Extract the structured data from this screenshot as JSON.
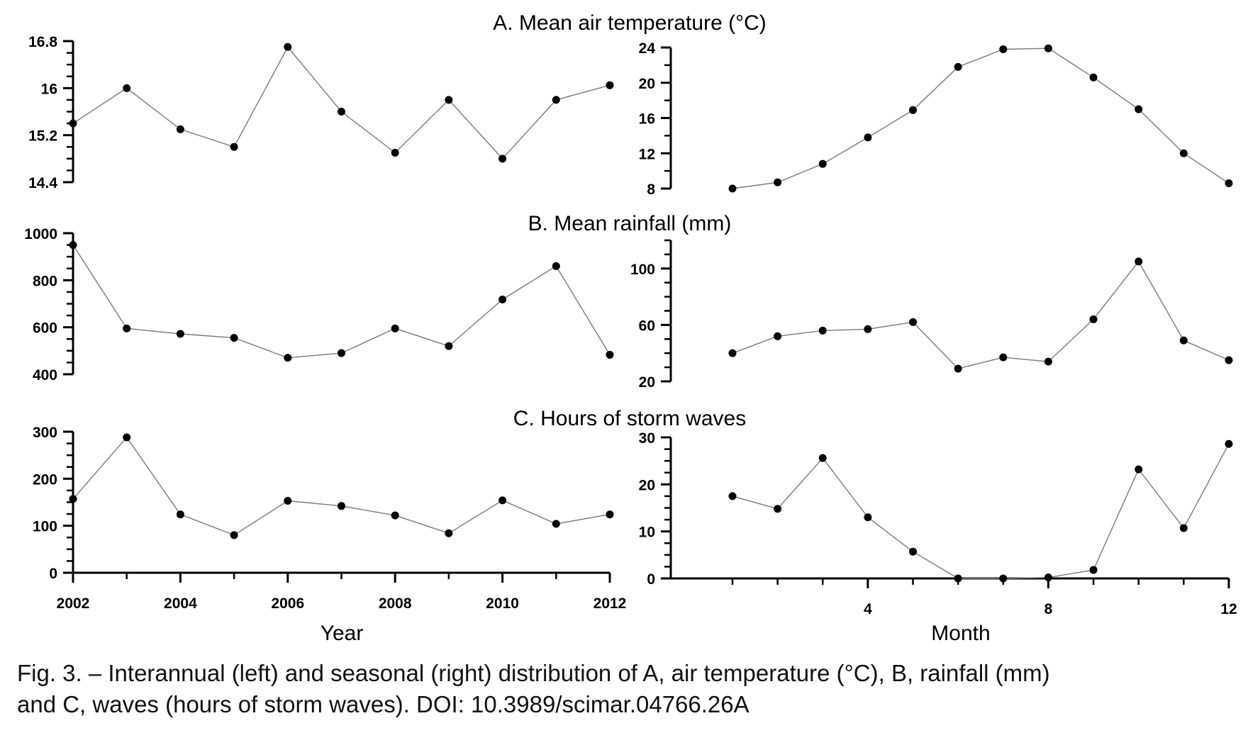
{
  "figure": {
    "panel_titles": [
      "A. Mean air temperature (°C)",
      "B. Mean rainfall (mm)",
      "C. Hours of storm waves"
    ],
    "caption_lines": [
      "Fig. 3. – Interannual (left) and seasonal (right) distribution of A, air temperature (°C), B, rainfall (mm)",
      "and C, waves (hours of storm waves). DOI: 10.3989/scimar.04766.26A"
    ]
  },
  "chart_data": [
    {
      "id": "A-left",
      "type": "line",
      "title": "A. Mean air temperature (°C)",
      "xlabel": "",
      "ylabel": "",
      "x": [
        2002,
        2003,
        2004,
        2005,
        2006,
        2007,
        2008,
        2009,
        2010,
        2011,
        2012
      ],
      "y": [
        15.4,
        16.0,
        15.3,
        15.0,
        16.7,
        15.6,
        14.9,
        15.8,
        14.8,
        15.8,
        16.05
      ],
      "xlim": [
        2002,
        2012
      ],
      "ylim": [
        14.4,
        16.8
      ],
      "ytick_labels": [
        "14.4",
        "15.2",
        "16",
        "16.8"
      ],
      "yticks": [
        14.4,
        15.2,
        16.0,
        16.8
      ],
      "y_minor_step": 0.2,
      "xtick_labels": []
    },
    {
      "id": "A-right",
      "type": "line",
      "title": "",
      "xlabel": "",
      "ylabel": "",
      "x": [
        1,
        2,
        3,
        4,
        5,
        6,
        7,
        8,
        9,
        10,
        11,
        12
      ],
      "y": [
        8.0,
        8.7,
        10.8,
        13.8,
        16.9,
        21.8,
        23.8,
        23.9,
        20.6,
        17.0,
        12.0,
        8.6
      ],
      "xlim": [
        0.5,
        12
      ],
      "ylim": [
        8,
        24
      ],
      "ytick_labels": [
        "8",
        "12",
        "16",
        "20",
        "24"
      ],
      "yticks": [
        8,
        12,
        16,
        20,
        24
      ],
      "y_minor_step": 2,
      "xtick_labels": []
    },
    {
      "id": "B-left",
      "type": "line",
      "title": "B. Mean rainfall (mm)",
      "xlabel": "",
      "ylabel": "",
      "x": [
        2002,
        2003,
        2004,
        2005,
        2006,
        2007,
        2008,
        2009,
        2010,
        2011,
        2012
      ],
      "y": [
        950,
        595,
        572,
        555,
        470,
        490,
        595,
        520,
        718,
        860,
        483
      ],
      "xlim": [
        2002,
        2012
      ],
      "ylim": [
        400,
        1000
      ],
      "ytick_labels": [
        "400",
        "600",
        "800",
        "1000"
      ],
      "yticks": [
        400,
        600,
        800,
        1000
      ],
      "y_minor_step": 50,
      "xtick_labels": []
    },
    {
      "id": "B-right",
      "type": "line",
      "title": "",
      "xlabel": "",
      "ylabel": "",
      "x": [
        1,
        2,
        3,
        4,
        5,
        6,
        7,
        8,
        9,
        10,
        11,
        12
      ],
      "y": [
        40,
        52,
        56,
        57,
        62,
        29,
        37,
        34,
        64,
        105,
        49,
        35
      ],
      "xlim": [
        0.5,
        12
      ],
      "ylim": [
        20,
        120
      ],
      "ytick_labels": [
        "20",
        "60",
        "100"
      ],
      "yticks": [
        20,
        60,
        100
      ],
      "y_minor_step": 10,
      "xtick_labels": []
    },
    {
      "id": "C-left",
      "type": "line",
      "title": "C. Hours of storm waves",
      "xlabel": "Year",
      "ylabel": "",
      "x": [
        2002,
        2003,
        2004,
        2005,
        2006,
        2007,
        2008,
        2009,
        2010,
        2011,
        2012
      ],
      "y": [
        157,
        288,
        124,
        80,
        153,
        142,
        122,
        84,
        154,
        104,
        124
      ],
      "xlim": [
        2002,
        2012
      ],
      "ylim": [
        0,
        300
      ],
      "ytick_labels": [
        "0",
        "100",
        "200",
        "300"
      ],
      "yticks": [
        0,
        100,
        200,
        300
      ],
      "y_minor_step": 25,
      "xtick_labels": [
        "2002",
        "2004",
        "2006",
        "2008",
        "2010",
        "2012"
      ],
      "xticks": [
        2002,
        2004,
        2006,
        2008,
        2010,
        2012
      ],
      "x_minor_step": 1
    },
    {
      "id": "C-right",
      "type": "line",
      "title": "",
      "xlabel": "Month",
      "ylabel": "",
      "x": [
        1,
        2,
        3,
        4,
        5,
        6,
        7,
        8,
        9,
        10,
        11,
        12
      ],
      "y": [
        17.5,
        14.8,
        25.6,
        13.0,
        5.7,
        0,
        0,
        0.2,
        1.8,
        23.2,
        10.7,
        28.6
      ],
      "xlim": [
        0.5,
        12
      ],
      "ylim": [
        0,
        30
      ],
      "ytick_labels": [
        "0",
        "10",
        "20",
        "30"
      ],
      "yticks": [
        0,
        10,
        20,
        30
      ],
      "y_minor_step": 2.5,
      "xtick_labels": [
        "4",
        "8",
        "12"
      ],
      "xticks": [
        4,
        8,
        12
      ],
      "x_minor_step": 1,
      "x_minor_start": 1
    }
  ]
}
